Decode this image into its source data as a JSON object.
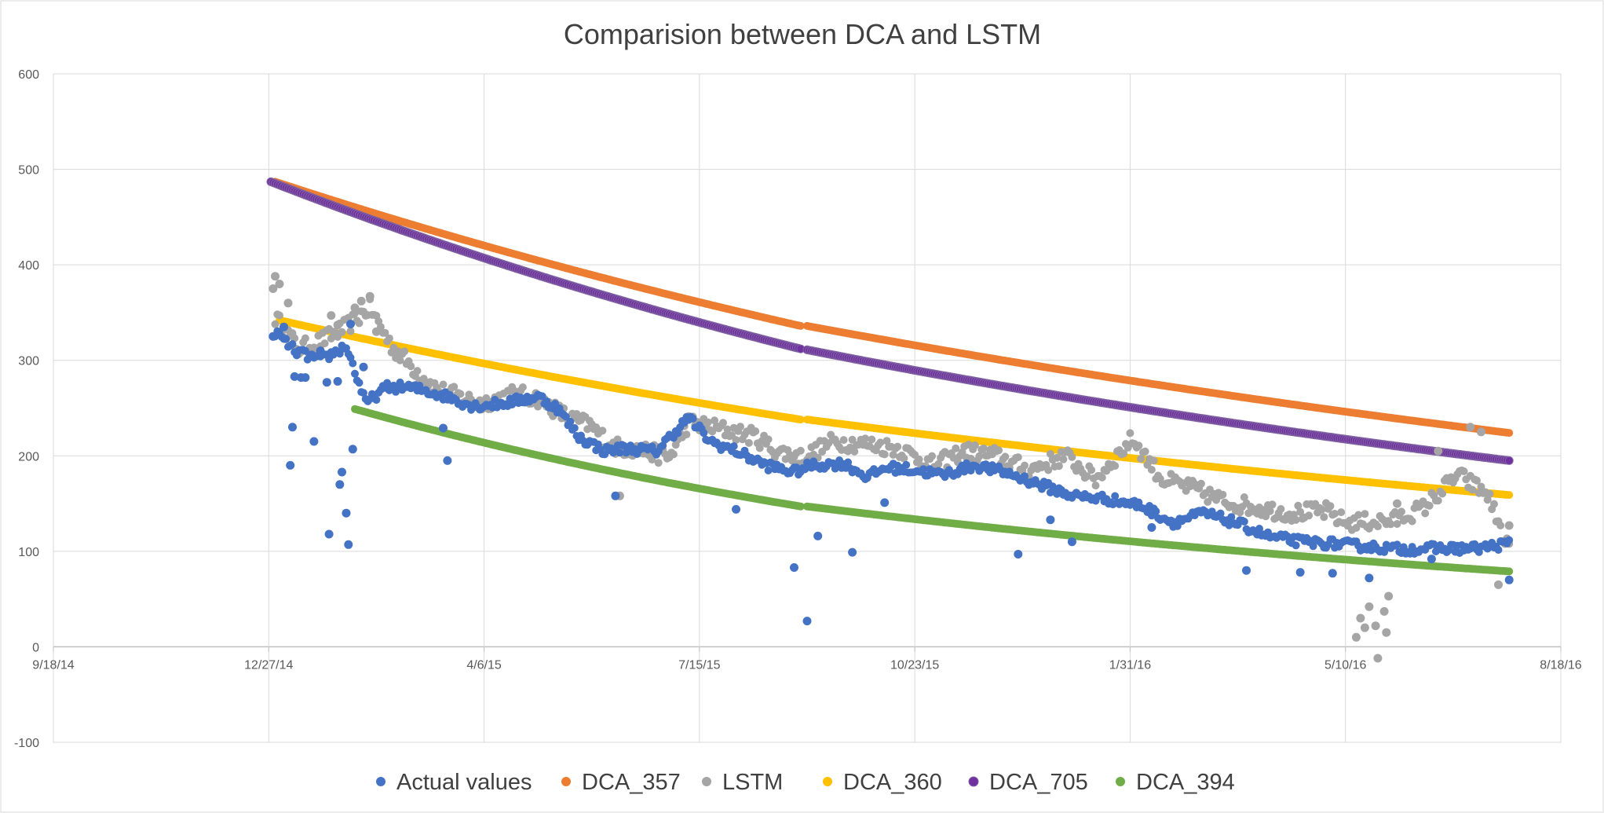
{
  "chart_data": {
    "type": "scatter",
    "title": "Comparision between DCA and LSTM",
    "xlabel": "",
    "ylabel": "",
    "x_axis": {
      "type": "date",
      "min": "2014-09-18",
      "max": "2016-08-18",
      "tick_dates": [
        "2014-09-18",
        "2014-12-27",
        "2015-04-06",
        "2015-07-15",
        "2015-10-23",
        "2016-01-31",
        "2016-05-10",
        "2016-08-18"
      ],
      "tick_labels": [
        "9/18/14",
        "12/27/14",
        "4/6/15",
        "7/15/15",
        "10/23/15",
        "1/31/16",
        "5/10/16",
        "8/18/16"
      ]
    },
    "y_axis": {
      "min": -100,
      "max": 600,
      "ticks": [
        -100,
        0,
        100,
        200,
        300,
        400,
        500,
        600
      ]
    },
    "grid": true,
    "legend_position": "bottom",
    "series": [
      {
        "name": "Actual values",
        "color": "#4472C4",
        "points": [
          [
            "2014-12-29",
            325
          ],
          [
            "2015-01-03",
            335
          ],
          [
            "2015-01-06",
            190
          ],
          [
            "2015-01-07",
            230
          ],
          [
            "2015-01-08",
            283
          ],
          [
            "2015-01-11",
            282
          ],
          [
            "2015-01-13",
            282
          ],
          [
            "2015-01-17",
            215
          ],
          [
            "2015-01-20",
            310
          ],
          [
            "2015-01-23",
            277
          ],
          [
            "2015-01-24",
            118
          ],
          [
            "2015-01-28",
            278
          ],
          [
            "2015-01-29",
            170
          ],
          [
            "2015-01-30",
            183
          ],
          [
            "2015-02-01",
            140
          ],
          [
            "2015-02-02",
            107
          ],
          [
            "2015-02-04",
            207
          ],
          [
            "2015-02-03",
            338
          ],
          [
            "2015-02-09",
            293
          ],
          [
            "2015-03-18",
            229
          ],
          [
            "2015-03-20",
            195
          ],
          [
            "2015-06-06",
            158
          ],
          [
            "2015-08-01",
            144
          ],
          [
            "2015-08-28",
            83
          ],
          [
            "2015-09-03",
            27
          ],
          [
            "2015-09-08",
            116
          ],
          [
            "2015-09-24",
            99
          ],
          [
            "2015-10-09",
            151
          ],
          [
            "2015-12-10",
            97
          ],
          [
            "2015-12-25",
            133
          ],
          [
            "2016-01-04",
            110
          ],
          [
            "2016-02-10",
            125
          ],
          [
            "2016-03-25",
            80
          ],
          [
            "2016-04-19",
            78
          ],
          [
            "2016-05-04",
            77
          ],
          [
            "2016-05-21",
            72
          ],
          [
            "2016-06-19",
            92
          ],
          [
            "2016-07-25",
            70
          ]
        ],
        "trend": [
          [
            "2014-12-30",
            330
          ],
          [
            "2015-01-08",
            310
          ],
          [
            "2015-01-20",
            300
          ],
          [
            "2015-02-01",
            315
          ],
          [
            "2015-02-10",
            255
          ],
          [
            "2015-02-20",
            272
          ],
          [
            "2015-03-01",
            272
          ],
          [
            "2015-03-10",
            268
          ],
          [
            "2015-03-20",
            262
          ],
          [
            "2015-04-01",
            252
          ],
          [
            "2015-04-15",
            255
          ],
          [
            "2015-05-01",
            262
          ],
          [
            "2015-05-10",
            250
          ],
          [
            "2015-05-20",
            220
          ],
          [
            "2015-06-01",
            205
          ],
          [
            "2015-06-10",
            208
          ],
          [
            "2015-06-25",
            205
          ],
          [
            "2015-07-10",
            240
          ],
          [
            "2015-07-20",
            215
          ],
          [
            "2015-08-01",
            205
          ],
          [
            "2015-08-15",
            190
          ],
          [
            "2015-08-28",
            183
          ],
          [
            "2015-09-05",
            190
          ],
          [
            "2015-09-20",
            192
          ],
          [
            "2015-10-01",
            178
          ],
          [
            "2015-10-10",
            188
          ],
          [
            "2015-10-23",
            185
          ],
          [
            "2015-11-05",
            180
          ],
          [
            "2015-11-20",
            190
          ],
          [
            "2015-12-05",
            182
          ],
          [
            "2015-12-20",
            170
          ],
          [
            "2016-01-05",
            158
          ],
          [
            "2016-01-20",
            155
          ],
          [
            "2016-02-05",
            148
          ],
          [
            "2016-02-20",
            130
          ],
          [
            "2016-03-05",
            140
          ],
          [
            "2016-03-20",
            130
          ],
          [
            "2016-04-05",
            115
          ],
          [
            "2016-04-20",
            110
          ],
          [
            "2016-05-05",
            108
          ],
          [
            "2016-05-20",
            105
          ],
          [
            "2016-06-05",
            102
          ],
          [
            "2016-06-20",
            103
          ],
          [
            "2016-07-10",
            103
          ],
          [
            "2016-07-25",
            108
          ]
        ]
      },
      {
        "name": "DCA_357",
        "color": "#ED7D31",
        "segments": [
          {
            "start": "2014-12-30",
            "end": "2015-08-31",
            "y_start": 487,
            "y_end": 336
          },
          {
            "start": "2015-09-03",
            "end": "2016-07-25",
            "y_start": 336,
            "y_end": 224
          }
        ]
      },
      {
        "name": "LSTM",
        "color": "#A5A5A5",
        "points": [
          [
            "2014-12-29",
            375
          ],
          [
            "2014-12-30",
            388
          ],
          [
            "2015-01-01",
            380
          ],
          [
            "2015-01-05",
            360
          ],
          [
            "2015-01-25",
            347
          ],
          [
            "2015-01-28",
            337
          ],
          [
            "2015-02-05",
            355
          ],
          [
            "2015-02-08",
            362
          ],
          [
            "2015-02-12",
            367
          ],
          [
            "2015-02-15",
            330
          ],
          [
            "2015-06-08",
            158
          ],
          [
            "2016-05-15",
            10
          ],
          [
            "2016-05-17",
            30
          ],
          [
            "2016-05-19",
            20
          ],
          [
            "2016-05-21",
            42
          ],
          [
            "2016-05-24",
            22
          ],
          [
            "2016-05-25",
            -12
          ],
          [
            "2016-05-28",
            37
          ],
          [
            "2016-05-29",
            15
          ],
          [
            "2016-05-30",
            53
          ],
          [
            "2016-06-03",
            150
          ],
          [
            "2016-06-22",
            205
          ],
          [
            "2016-07-07",
            230
          ],
          [
            "2016-07-12",
            225
          ],
          [
            "2016-07-20",
            65
          ],
          [
            "2016-07-25",
            127
          ]
        ],
        "trend": [
          [
            "2014-12-30",
            345
          ],
          [
            "2015-01-10",
            312
          ],
          [
            "2015-01-20",
            320
          ],
          [
            "2015-02-01",
            335
          ],
          [
            "2015-02-12",
            355
          ],
          [
            "2015-02-22",
            315
          ],
          [
            "2015-03-05",
            290
          ],
          [
            "2015-03-15",
            270
          ],
          [
            "2015-03-25",
            262
          ],
          [
            "2015-04-05",
            255
          ],
          [
            "2015-04-20",
            265
          ],
          [
            "2015-05-01",
            260
          ],
          [
            "2015-05-15",
            240
          ],
          [
            "2015-05-25",
            232
          ],
          [
            "2015-06-05",
            210
          ],
          [
            "2015-06-20",
            205
          ],
          [
            "2015-07-01",
            198
          ],
          [
            "2015-07-10",
            235
          ],
          [
            "2015-07-25",
            228
          ],
          [
            "2015-08-10",
            220
          ],
          [
            "2015-08-20",
            205
          ],
          [
            "2015-09-01",
            198
          ],
          [
            "2015-09-15",
            215
          ],
          [
            "2015-10-01",
            212
          ],
          [
            "2015-10-15",
            208
          ],
          [
            "2015-11-01",
            190
          ],
          [
            "2015-11-15",
            205
          ],
          [
            "2015-11-30",
            200
          ],
          [
            "2015-12-15",
            185
          ],
          [
            "2016-01-01",
            200
          ],
          [
            "2016-01-15",
            175
          ],
          [
            "2016-02-01",
            218
          ],
          [
            "2016-02-15",
            175
          ],
          [
            "2016-03-01",
            165
          ],
          [
            "2016-03-15",
            152
          ],
          [
            "2016-04-01",
            145
          ],
          [
            "2016-04-15",
            140
          ],
          [
            "2016-05-01",
            142
          ],
          [
            "2016-05-10",
            130
          ],
          [
            "2016-06-01",
            132
          ],
          [
            "2016-06-15",
            145
          ],
          [
            "2016-07-01",
            180
          ],
          [
            "2016-07-15",
            160
          ],
          [
            "2016-07-25",
            100
          ]
        ]
      },
      {
        "name": "DCA_360",
        "color": "#FFC000",
        "segments": [
          {
            "start": "2015-01-01",
            "end": "2015-08-31",
            "y_start": 342,
            "y_end": 238
          },
          {
            "start": "2015-09-03",
            "end": "2016-07-25",
            "y_start": 238,
            "y_end": 159
          }
        ]
      },
      {
        "name": "DCA_705",
        "color": "#7030A0",
        "segments": [
          {
            "start": "2014-12-28",
            "end": "2015-08-31",
            "y_start": 487,
            "y_end": 312
          },
          {
            "start": "2015-09-03",
            "end": "2016-07-25",
            "y_start": 311,
            "y_end": 195
          }
        ]
      },
      {
        "name": "DCA_394",
        "color": "#70AD47",
        "segments": [
          {
            "start": "2015-02-05",
            "end": "2015-08-31",
            "y_start": 249,
            "y_end": 147
          },
          {
            "start": "2015-09-03",
            "end": "2016-07-25",
            "y_start": 147,
            "y_end": 79
          }
        ]
      }
    ]
  }
}
